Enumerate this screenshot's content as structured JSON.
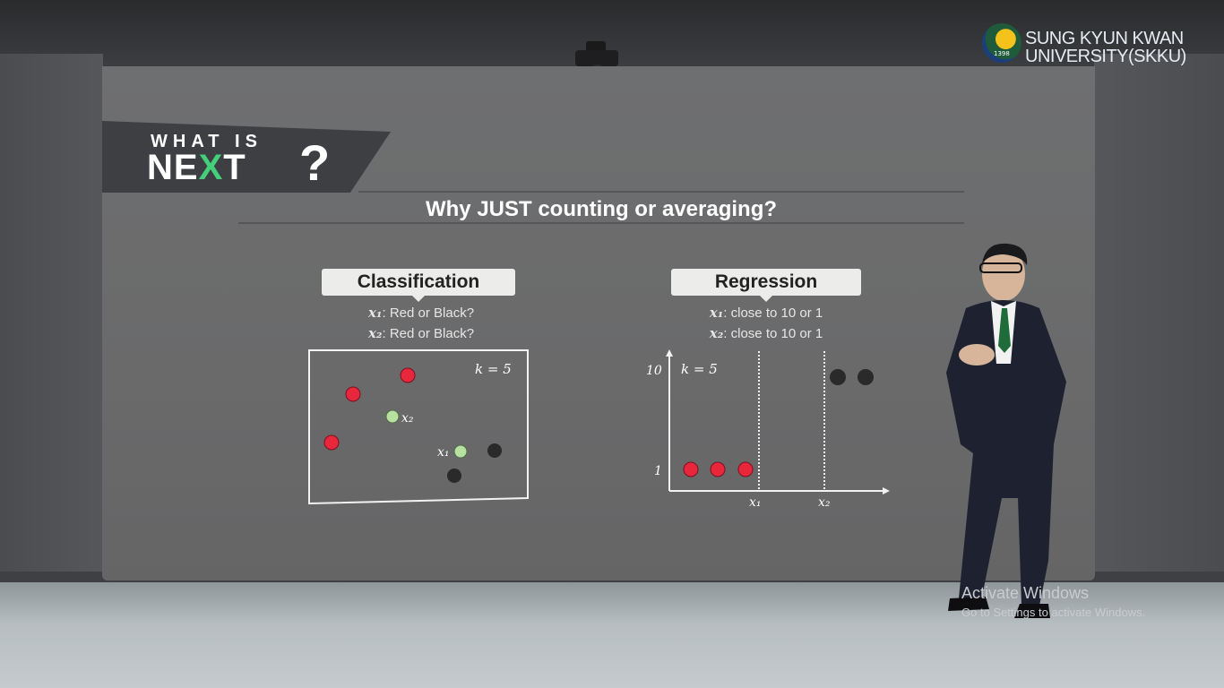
{
  "logo": {
    "line1": "SUNG KYUN KWAN",
    "line2": "UNIVERSITY(SKKU)",
    "year": "1398"
  },
  "banner": {
    "small": "WHAT IS",
    "big_before": "NE",
    "big_arrow": "X",
    "big_after": "T",
    "question": "?"
  },
  "slide": {
    "title": "Why JUST counting or averaging?"
  },
  "classification": {
    "label": "Classification",
    "q1_var": "x₁",
    "q1_text": ": Red or Black?",
    "q2_var": "x₂",
    "q2_text": ": Red or Black?",
    "k_label": "k = 5",
    "x1_label": "x₁",
    "x2_label": "x₂"
  },
  "regression": {
    "label": "Regression",
    "q1_var": "x₁",
    "q1_text": ": close to 10 or 1",
    "q2_var": "x₂",
    "q2_text": ": close to 10 or 1",
    "k_label": "k = 5",
    "y_tick_top": "10",
    "y_tick_bottom": "1",
    "x_tick_1": "x₁",
    "x_tick_2": "x₂"
  },
  "os_notice": {
    "title": "Activate Windows",
    "subtitle": "Go to Settings to activate Windows."
  },
  "colors": {
    "red_point": "#e8273d",
    "black_point": "#2a2a2a",
    "query_point": "#b8e0a0",
    "accent_green": "#44d07a"
  }
}
